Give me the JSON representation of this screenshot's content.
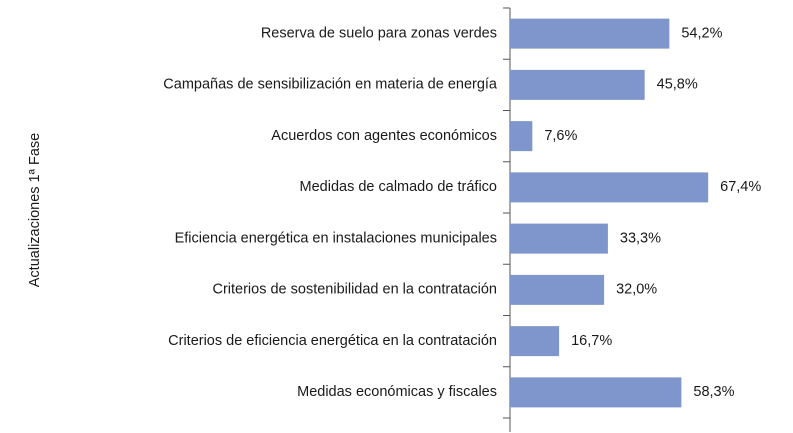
{
  "chart_data": {
    "type": "bar",
    "orientation": "horizontal",
    "y_label": "Actualizaciones 1ª Fase",
    "categories": [
      "Reserva de suelo para zonas verdes",
      "Campañas de sensibilización en materia de energía",
      "Acuerdos con agentes  económicos",
      "Medidas de calmado de tráfico",
      "Eficiencia energética en instalaciones municipales",
      "Criterios de sostenibilidad en la contratación",
      "Criterios de eficiencia energética en la contratación",
      "Medidas económicas y fiscales"
    ],
    "values": [
      54.2,
      45.8,
      7.6,
      67.4,
      33.3,
      32.0,
      16.7,
      58.3
    ],
    "value_labels": [
      "54,2%",
      "45,8%",
      "7,6%",
      "67,4%",
      "33,3%",
      "32,0%",
      "16,7%",
      "58,3%"
    ],
    "color": "#7f96cc",
    "xlim": [
      0,
      100
    ]
  }
}
